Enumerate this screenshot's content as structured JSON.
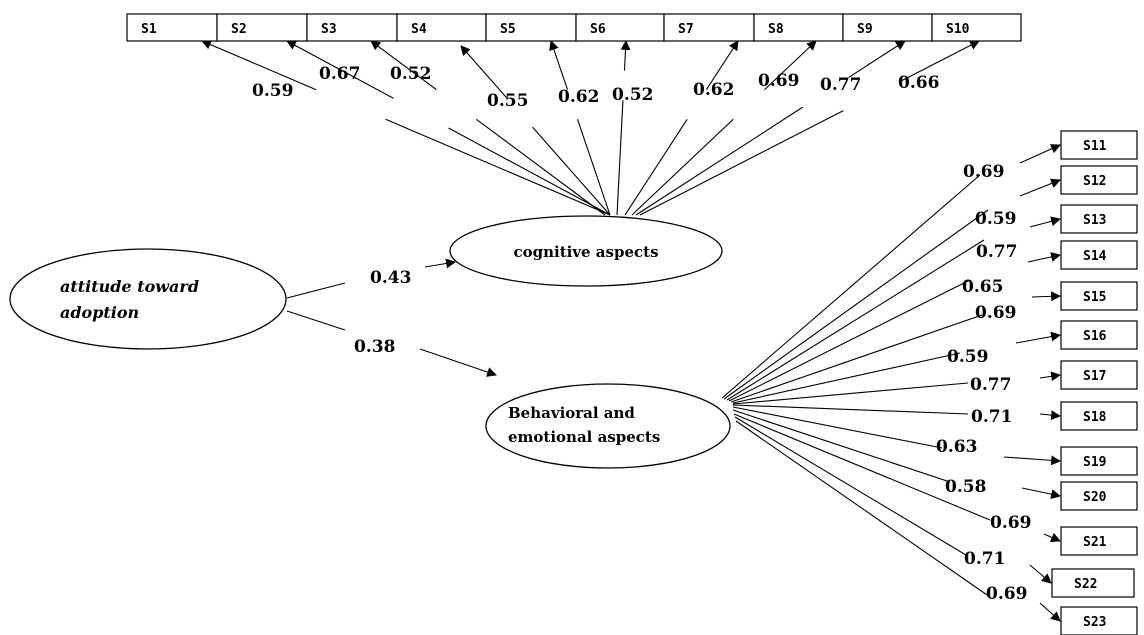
{
  "latent": {
    "attitude": {
      "line1": "attitude toward",
      "line2": "adoption"
    },
    "cognitive": {
      "label": "cognitive aspects"
    },
    "behavioral": {
      "line1": "Behavioral and",
      "line2": "emotional aspects"
    }
  },
  "structural_paths": [
    {
      "from": "attitude",
      "to": "cognitive",
      "coef": "0.43"
    },
    {
      "from": "attitude",
      "to": "behavioral",
      "coef": "0.38"
    }
  ],
  "cognitive_indicators": [
    {
      "label": "S1",
      "coef": "0.59"
    },
    {
      "label": "S2",
      "coef": "0.67"
    },
    {
      "label": "S3",
      "coef": "0.52"
    },
    {
      "label": "S4",
      "coef": "0.55"
    },
    {
      "label": "S5",
      "coef": "0.62"
    },
    {
      "label": "S6",
      "coef": "0.52"
    },
    {
      "label": "S7",
      "coef": "0.62"
    },
    {
      "label": "S8",
      "coef": "0.69"
    },
    {
      "label": "S9",
      "coef": "0.77"
    },
    {
      "label": "S10",
      "coef": "0.66"
    }
  ],
  "behavioral_indicators": [
    {
      "label": "S11",
      "coef": "0.69"
    },
    {
      "label": "S12",
      "coef": "0.59"
    },
    {
      "label": "S13",
      "coef": "0.77"
    },
    {
      "label": "S14",
      "coef": "0.65"
    },
    {
      "label": "S15",
      "coef": "0.69"
    },
    {
      "label": "S16",
      "coef": "0.59"
    },
    {
      "label": "S17",
      "coef": "0.77"
    },
    {
      "label": "S18",
      "coef": "0.71"
    },
    {
      "label": "S19",
      "coef": "0.63"
    },
    {
      "label": "S20",
      "coef": "0.58"
    },
    {
      "label": "S21",
      "coef": "0.69"
    },
    {
      "label": "S22",
      "coef": "0.71"
    },
    {
      "label": "S23",
      "coef": "0.69"
    }
  ]
}
